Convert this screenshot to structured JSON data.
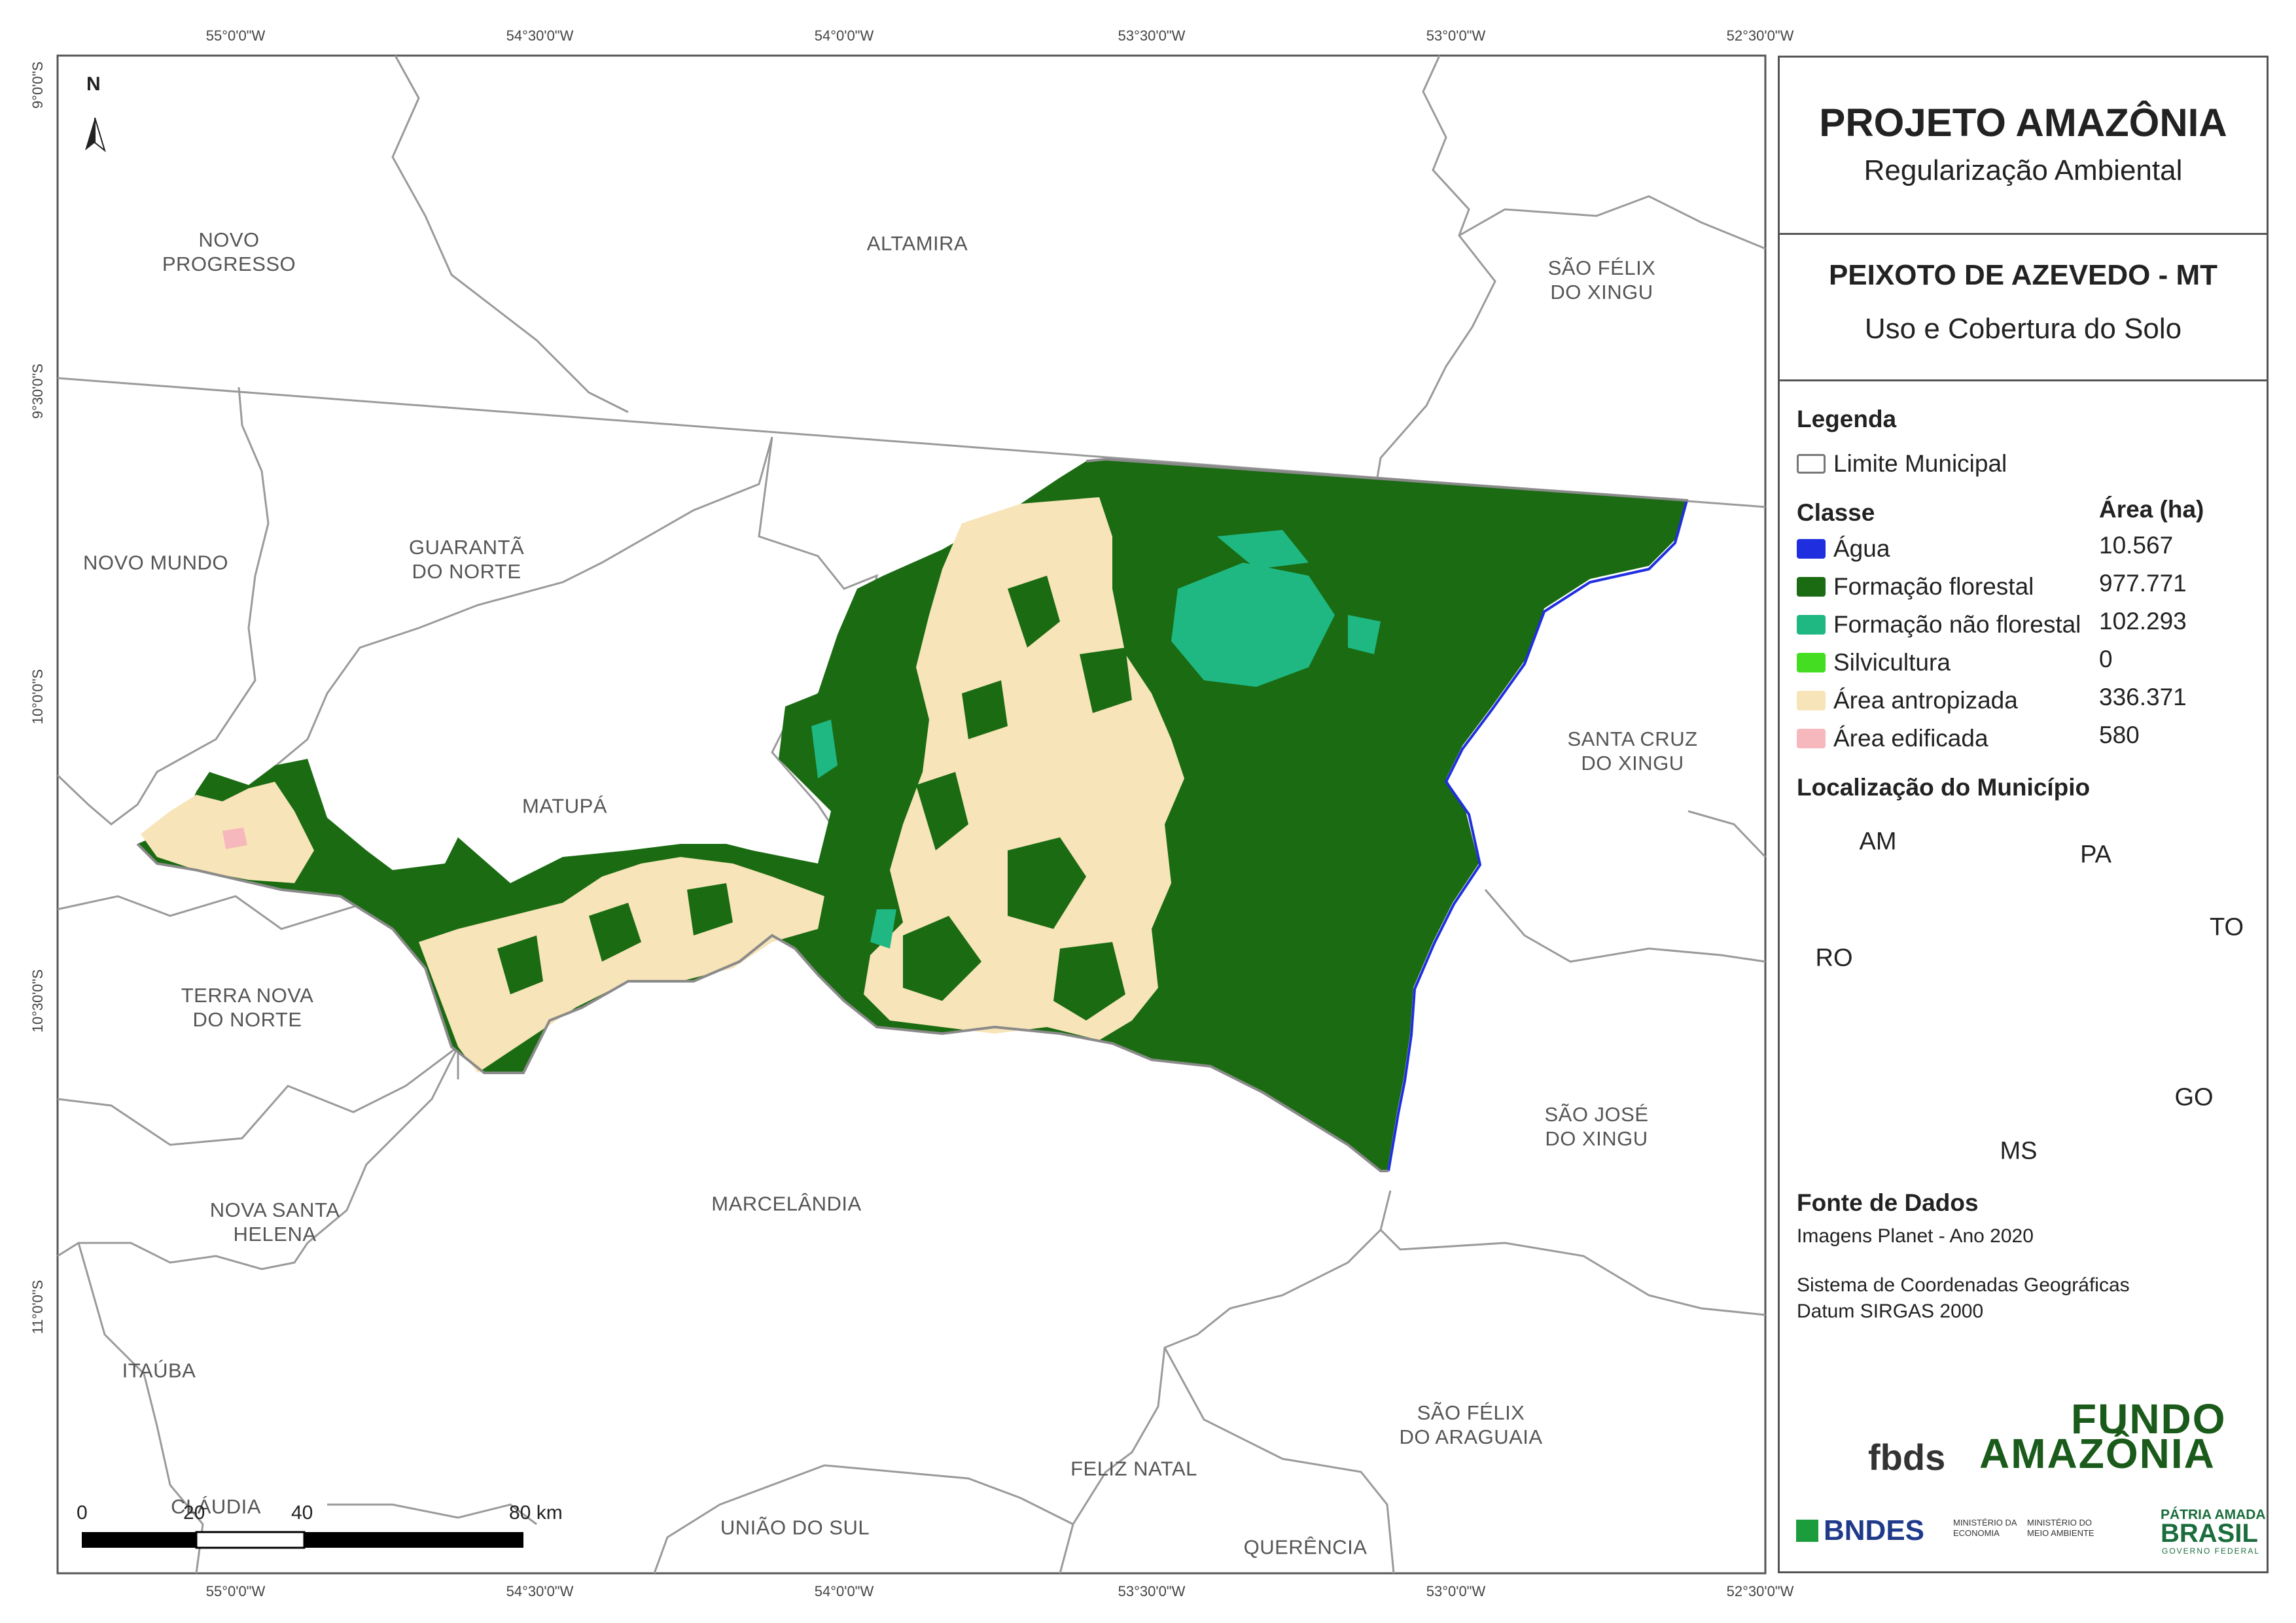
{
  "map": {
    "north_label": "N",
    "coords_top": [
      "55°0'0\"W",
      "54°30'0\"W",
      "54°0'0\"W",
      "53°30'0\"W",
      "53°0'0\"W",
      "52°30'0\"W"
    ],
    "coords_bottom": [
      "55°0'0\"W",
      "54°30'0\"W",
      "54°0'0\"W",
      "53°30'0\"W",
      "53°0'0\"W",
      "52°30'0\"W"
    ],
    "coords_left": [
      "9°0'0\"S",
      "9°30'0\"S",
      "10°0'0\"S",
      "10°30'0\"S",
      "11°0'0\"S"
    ],
    "municipalities": [
      "NOVO\nPROGRESSO",
      "ALTAMIRA",
      "SÃO FÉLIX\nDO XINGU",
      "NOVO MUNDO",
      "GUARANTÃ\nDO NORTE",
      "MATUPÁ",
      "SANTA CRUZ\nDO XINGU",
      "TERRA NOVA\nDO NORTE",
      "SÃO JOSÉ\nDO XINGU",
      "NOVA SANTA\nHELENA",
      "MARCELÂNDIA",
      "ITAÚBA",
      "SÃO FÉLIX\nDO ARAGUAIA",
      "CLÁUDIA",
      "FELIZ NATAL",
      "UNIÃO DO SUL",
      "QUERÊNCIA"
    ],
    "scale": {
      "labels": [
        "0",
        "20",
        "40",
        "80 km"
      ]
    }
  },
  "panel": {
    "title": "PROJETO AMAZÔNIA",
    "subtitle": "Regularização Ambiental",
    "municipality_title": "PEIXOTO DE AZEVEDO - MT",
    "map_theme": "Uso e Cobertura do Solo",
    "legend_header": "Legenda",
    "limit_label": "Limite Municipal",
    "class_header": "Classe",
    "area_header": "Área (ha)",
    "classes": [
      {
        "label": "Água",
        "value": "10.567",
        "color": "#1f2fe0"
      },
      {
        "label": "Formação florestal",
        "value": "977.771",
        "color": "#1a6b12"
      },
      {
        "label": "Formação não florestal",
        "value": "102.293",
        "color": "#1fb882"
      },
      {
        "label": "Silvicultura",
        "value": "0",
        "color": "#44dd22"
      },
      {
        "label": "Área antropizada",
        "value": "336.371",
        "color": "#f7e4b8"
      },
      {
        "label": "Área edificada",
        "value": "580",
        "color": "#f6b8bc"
      }
    ],
    "location_header": "Localização do Município",
    "inset_labels": [
      "AM",
      "PA",
      "RO",
      "TO",
      "GO",
      "MS"
    ],
    "source_header": "Fonte de Dados",
    "source_lines": [
      "Imagens Planet - Ano 2020",
      "Sistema de Coordenadas Geográficas",
      "Datum SIRGAS 2000"
    ],
    "logos": {
      "fbds": "fbds",
      "fundo_line1": "FUNDO",
      "fundo_line2": "AMAZÔNIA",
      "bndes": "BNDES",
      "min_eco": "MINISTÉRIO DA ECONOMIA",
      "min_amb": "MINISTÉRIO DO MEIO AMBIENTE",
      "patria_line1": "PÁTRIA AMADA",
      "patria_line2": "BRASIL",
      "patria_line3": "GOVERNO FEDERAL"
    }
  }
}
